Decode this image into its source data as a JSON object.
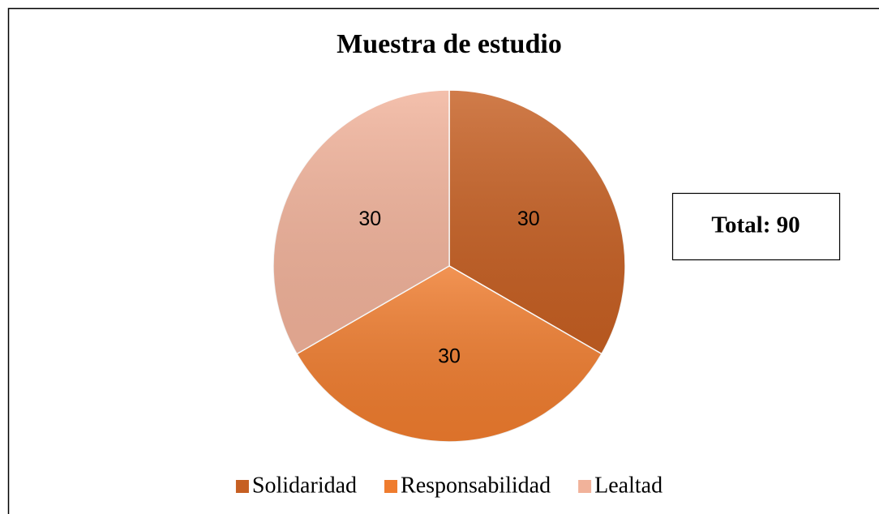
{
  "chart_data": {
    "type": "pie",
    "title": "Muestra de estudio",
    "categories": [
      "Solidaridad",
      "Responsabilidad",
      "Lealtad"
    ],
    "values": [
      30,
      30,
      30
    ],
    "colors": [
      "#c65f22",
      "#ef7c2e",
      "#f1b29a"
    ],
    "annotation": "Total: 90",
    "legend": "bottom"
  }
}
